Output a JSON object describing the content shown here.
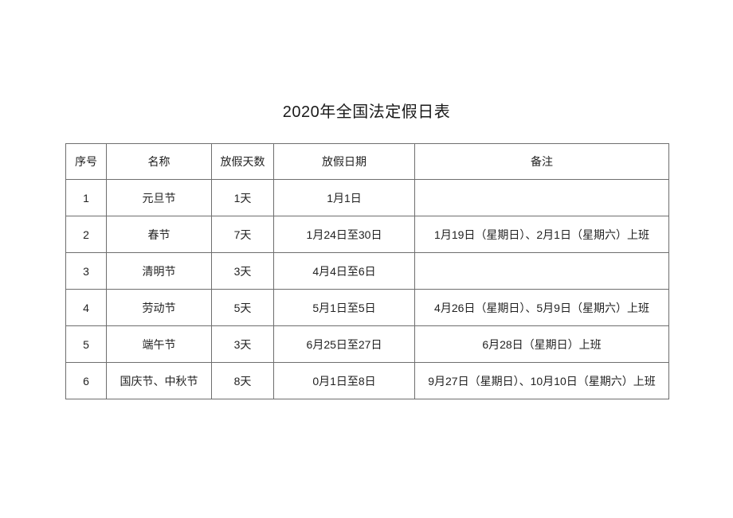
{
  "title": "2020年全国法定假日表",
  "table": {
    "headers": [
      "序号",
      "名称",
      "放假天数",
      "放假日期",
      "备注"
    ],
    "rows": [
      [
        "1",
        "元旦节",
        "1天",
        "1月1日",
        ""
      ],
      [
        "2",
        "春节",
        "7天",
        "1月24日至30日",
        "1月19日（星期日）、2月1日（星期六）上班"
      ],
      [
        "3",
        "清明节",
        "3天",
        "4月4日至6日",
        ""
      ],
      [
        "4",
        "劳动节",
        "5天",
        "5月1日至5日",
        "4月26日（星期日）、5月9日（星期六）上班"
      ],
      [
        "5",
        "端午节",
        "3天",
        "6月25日至27日",
        "6月28日（星期日）上班"
      ],
      [
        "6",
        "国庆节、中秋节",
        "8天",
        "0月1日至8日",
        "9月27日（星期日）、10月10日（星期六）上班"
      ]
    ],
    "border_color": "#6e6e6e",
    "background": "#ffffff"
  }
}
